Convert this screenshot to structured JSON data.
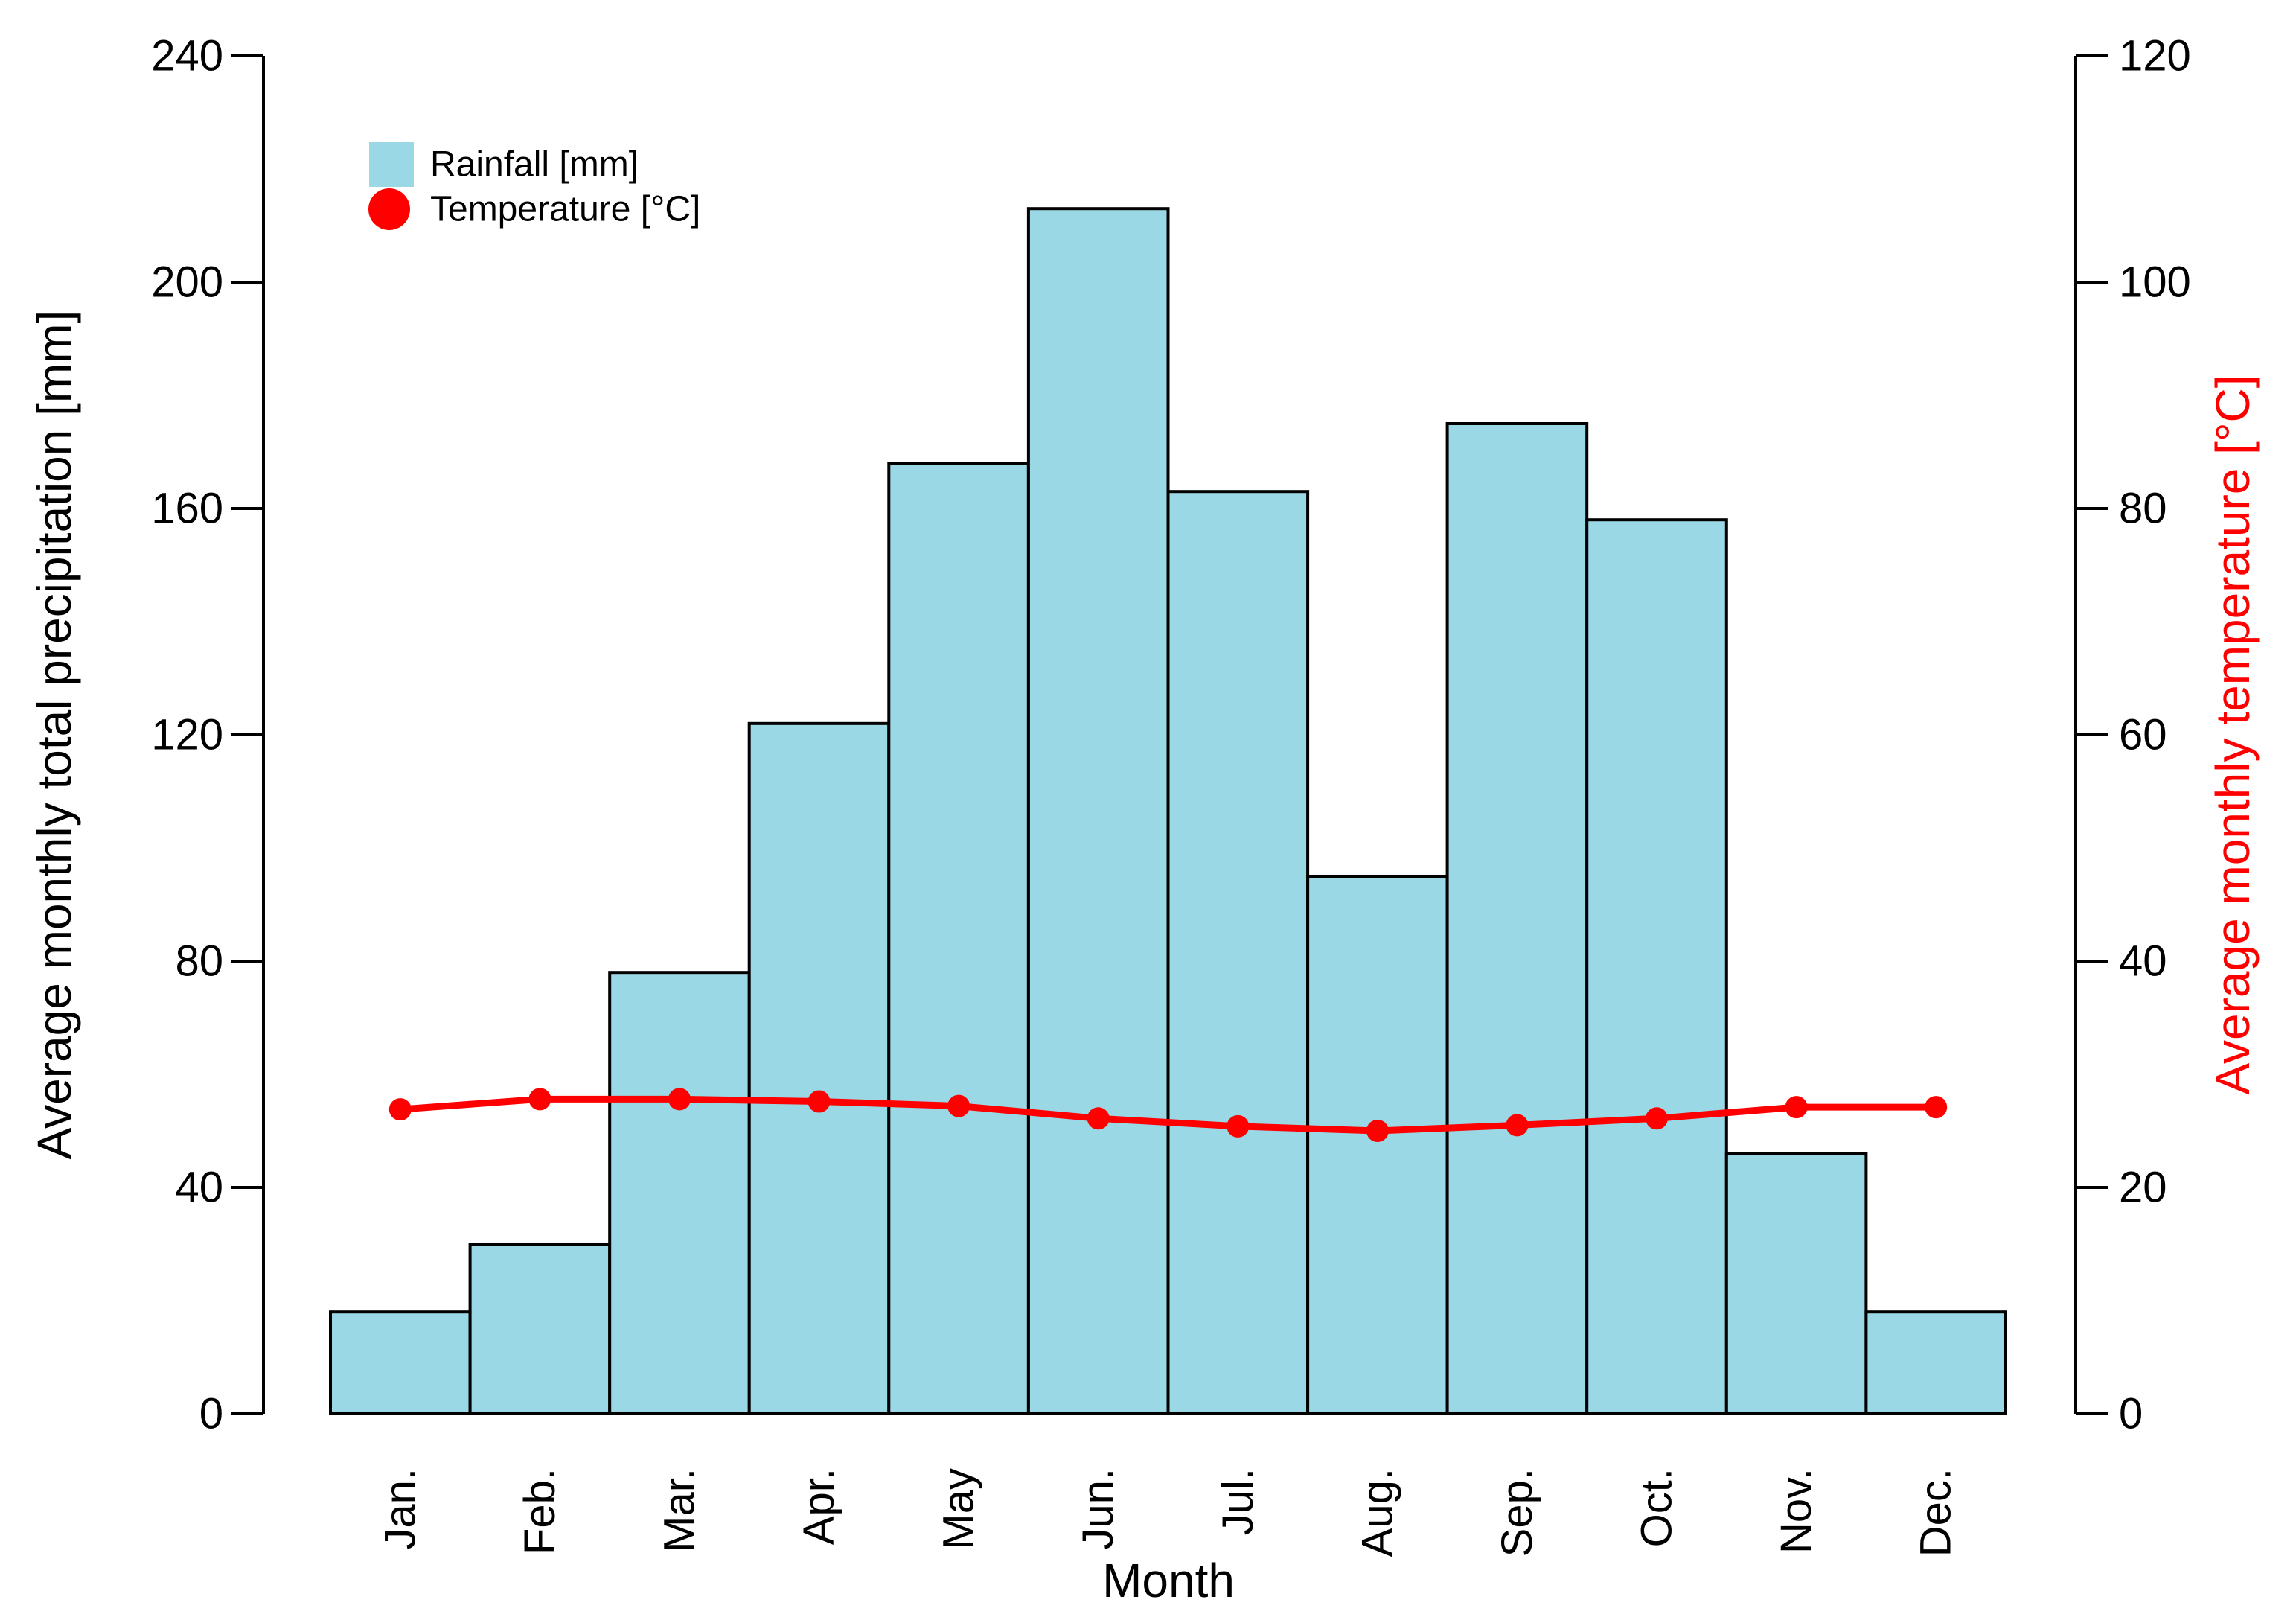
{
  "chart_data": {
    "type": "bar",
    "categories": [
      "Jan.",
      "Feb.",
      "Mar.",
      "Apr.",
      "May",
      "Jun.",
      "Jul.",
      "Aug.",
      "Sep.",
      "Oct.",
      "Nov.",
      "Dec."
    ],
    "series": [
      {
        "name": "Rainfall [mm]",
        "type": "bar",
        "axis": "left",
        "color": "#9AD8E6",
        "border_color": "#000000",
        "values": [
          18,
          30,
          78,
          122,
          168,
          213,
          163,
          95,
          175,
          158,
          46,
          18
        ]
      },
      {
        "name": "Temperature [°C]",
        "type": "line",
        "axis": "right",
        "color": "#FF0000",
        "values": [
          26.9,
          27.8,
          27.8,
          27.6,
          27.2,
          26.1,
          25.4,
          25.0,
          25.5,
          26.1,
          27.1,
          27.1
        ]
      }
    ],
    "xlabel": "Month",
    "left_axis": {
      "label": "Average monthly total precipitation [mm]",
      "color": "#000000",
      "range": [
        0,
        240
      ],
      "ticks": [
        0,
        40,
        80,
        120,
        160,
        200,
        240
      ]
    },
    "right_axis": {
      "label": "Average monthly temperature [°C]",
      "color": "#FF0000",
      "range": [
        0,
        120
      ],
      "ticks": [
        0,
        20,
        40,
        60,
        80,
        100,
        120
      ]
    },
    "legend": {
      "position": "topleft",
      "entries": [
        {
          "label": "Rainfall [mm]",
          "marker": "square",
          "color": "#9AD8E6"
        },
        {
          "label": "Temperature [°C]",
          "marker": "circle",
          "color": "#FF0000"
        }
      ]
    },
    "grid": false
  }
}
